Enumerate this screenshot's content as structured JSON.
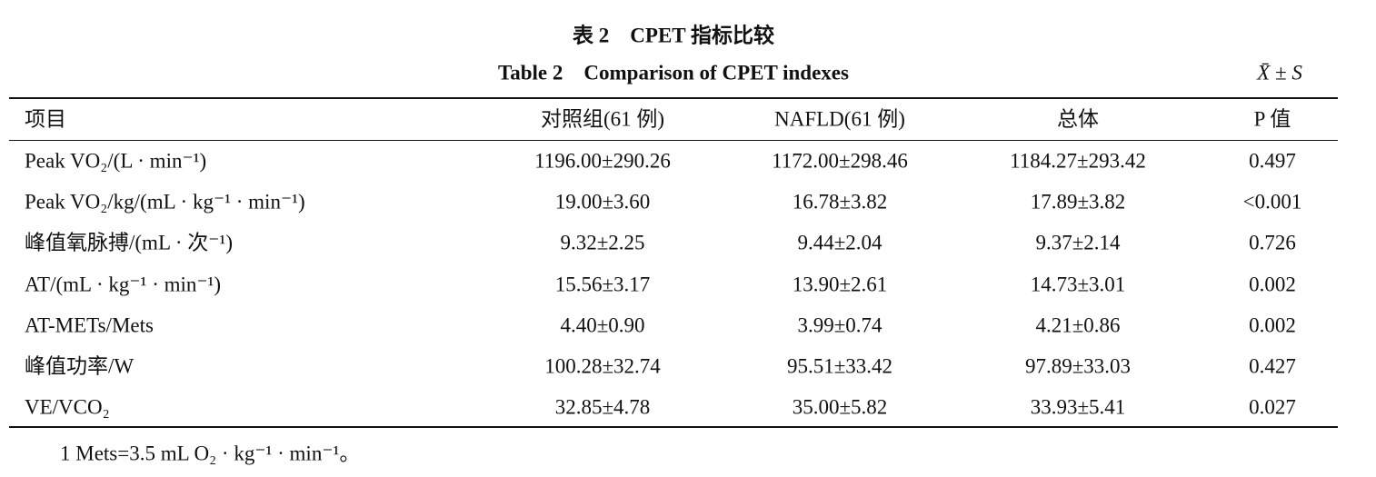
{
  "header": {
    "title": "表 2　CPET 指标比较",
    "subtitle": "Table 2　Comparison of CPET indexes",
    "stat_note": "X̄ ± S"
  },
  "table": {
    "columns": [
      "项目",
      "对照组(61 例)",
      "NAFLD(61 例)",
      "总体",
      "P 值"
    ],
    "rows": [
      [
        "Peak VO₂/(L · min⁻¹)",
        "1196.00±290.26",
        "1172.00±298.46",
        "1184.27±293.42",
        "0.497"
      ],
      [
        "Peak VO₂/kg/(mL · kg⁻¹ · min⁻¹)",
        "19.00±3.60",
        "16.78±3.82",
        "17.89±3.82",
        "<0.001"
      ],
      [
        "峰值氧脉搏/(mL · 次⁻¹)",
        "9.32±2.25",
        "9.44±2.04",
        "9.37±2.14",
        "0.726"
      ],
      [
        "AT/(mL · kg⁻¹ · min⁻¹)",
        "15.56±3.17",
        "13.90±2.61",
        "14.73±3.01",
        "0.002"
      ],
      [
        "AT-METs/Mets",
        "4.40±0.90",
        "3.99±0.74",
        "4.21±0.86",
        "0.002"
      ],
      [
        "峰值功率/W",
        "100.28±32.74",
        "95.51±33.42",
        "97.89±33.03",
        "0.427"
      ],
      [
        "VE/VCO₂",
        "32.85±4.78",
        "35.00±5.82",
        "33.93±5.41",
        "0.027"
      ]
    ]
  },
  "footnote": "1 Mets=3.5 mL O₂ · kg⁻¹ · min⁻¹。"
}
